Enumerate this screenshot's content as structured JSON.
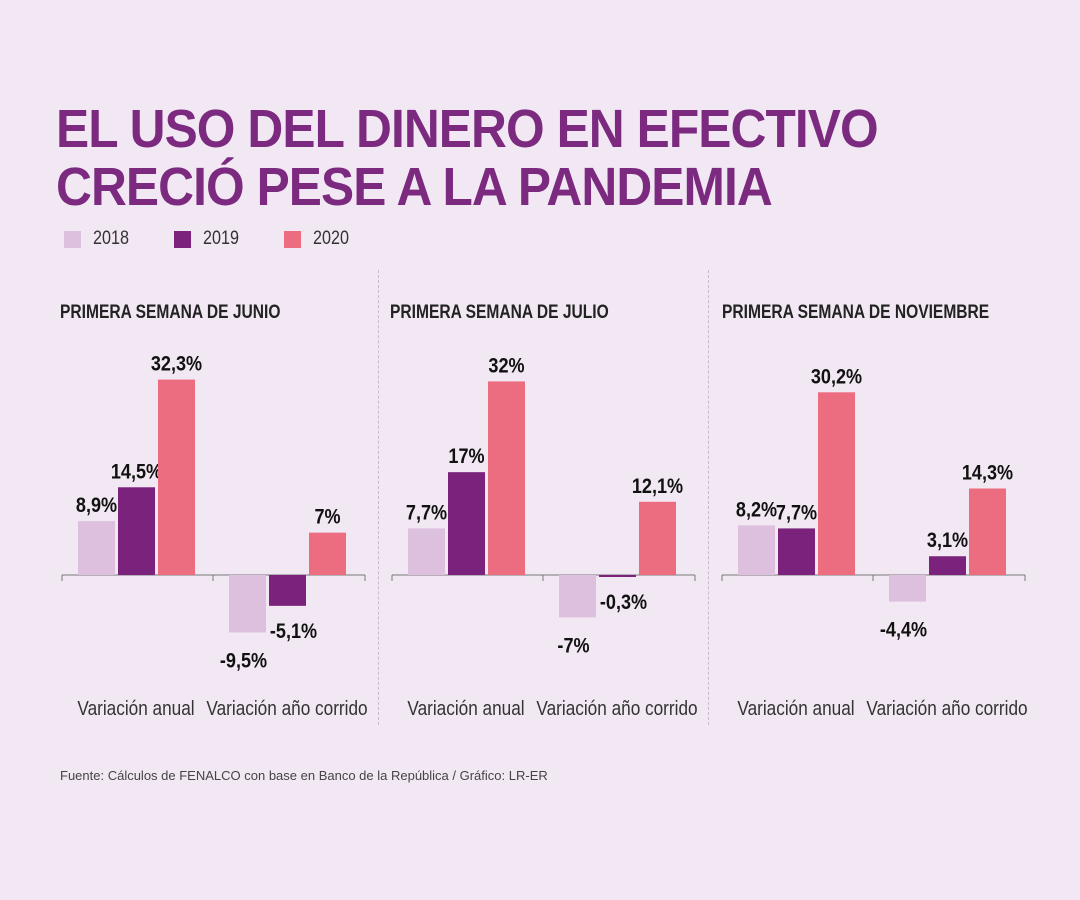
{
  "title": {
    "line1": "EL USO DEL DINERO EN EFECTIVO",
    "line2": "CRECIÓ PESE A LA PANDEMIA"
  },
  "colors": {
    "2018": "#dcc0dd",
    "2019": "#7b237c",
    "2020": "#ec6d80",
    "title": "#7b2a80"
  },
  "legend": [
    {
      "label": "2018",
      "color": "#dcc0dd"
    },
    {
      "label": "2019",
      "color": "#7b237c"
    },
    {
      "label": "2020",
      "color": "#ec6d80"
    }
  ],
  "chart_data": [
    {
      "type": "bar",
      "title": "PRIMERA SEMANA DE JUNIO",
      "categories": [
        "Variación anual",
        "Variación año corrido"
      ],
      "series": [
        {
          "name": "2018",
          "values": [
            8.9,
            -9.5
          ],
          "labels": [
            "8,9%",
            "-9,5%"
          ]
        },
        {
          "name": "2019",
          "values": [
            14.5,
            -5.1
          ],
          "labels": [
            "14,5%",
            "-5,1%"
          ]
        },
        {
          "name": "2020",
          "values": [
            32.3,
            7
          ],
          "labels": [
            "32,3%",
            "7%"
          ]
        }
      ],
      "ylim": [
        -12,
        33
      ]
    },
    {
      "type": "bar",
      "title": "PRIMERA SEMANA DE JULIO",
      "categories": [
        "Variación anual",
        "Variación año corrido"
      ],
      "series": [
        {
          "name": "2018",
          "values": [
            7.7,
            -7
          ],
          "labels": [
            "7,7%",
            "-7%"
          ]
        },
        {
          "name": "2019",
          "values": [
            17,
            -0.3
          ],
          "labels": [
            "17%",
            "-0,3%"
          ]
        },
        {
          "name": "2020",
          "values": [
            32,
            12.1
          ],
          "labels": [
            "32%",
            "12,1%"
          ]
        }
      ],
      "ylim": [
        -12,
        33
      ]
    },
    {
      "type": "bar",
      "title": "PRIMERA SEMANA DE NOVIEMBRE",
      "categories": [
        "Variación anual",
        "Variación año corrido"
      ],
      "series": [
        {
          "name": "2018",
          "values": [
            8.2,
            -4.4
          ],
          "labels": [
            "8,2%",
            "-4,4%"
          ]
        },
        {
          "name": "2019",
          "values": [
            7.7,
            3.1
          ],
          "labels": [
            "7,7%",
            "3,1%"
          ]
        },
        {
          "name": "2020",
          "values": [
            30.2,
            14.3
          ],
          "labels": [
            "30,2%",
            "14,3%"
          ]
        }
      ],
      "ylim": [
        -12,
        33
      ]
    }
  ],
  "source": "Fuente: Cálculos de FENALCO con base en Banco de la República / Gráfico: LR-ER"
}
